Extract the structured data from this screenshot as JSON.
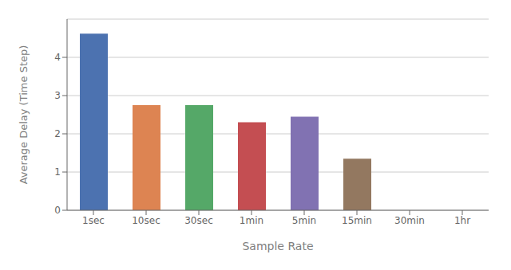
{
  "chart_data": {
    "type": "bar",
    "categories": [
      "1sec",
      "10sec",
      "30sec",
      "1min",
      "5min",
      "15min",
      "30min",
      "1hr"
    ],
    "values": [
      4.62,
      2.75,
      2.75,
      2.3,
      2.45,
      1.35,
      0.0,
      0.0
    ],
    "colors": [
      "#4c72b0",
      "#dd8452",
      "#55a868",
      "#c44e52",
      "#8172b2",
      "#937860",
      "#4c72b0",
      "#4c72b0"
    ],
    "xlabel": "Sample Rate",
    "ylabel": "Average Delay (Time Step)",
    "ylim": [
      0,
      5.0
    ],
    "yticks": [
      0,
      1,
      2,
      3,
      4
    ],
    "grid": true
  }
}
